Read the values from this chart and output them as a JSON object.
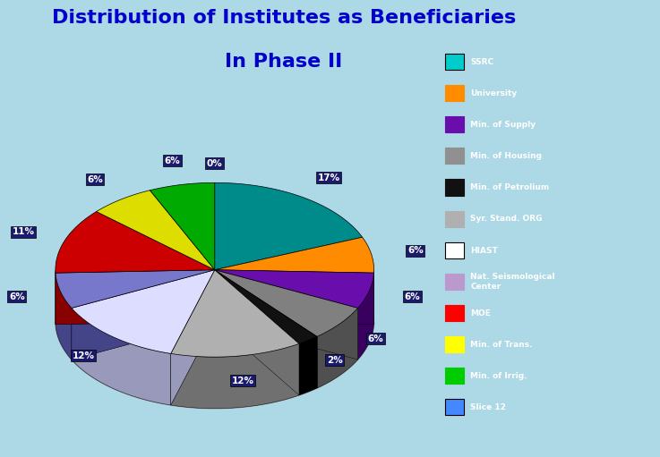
{
  "title_line1": "Distribution of Institutes as Beneficiaries",
  "title_line2": "In Phase II",
  "title_color": "#0000CC",
  "background_color": "#ADD8E6",
  "legend_bg": "#4477CC",
  "chart_box_color": "#E8E8F0",
  "labels": [
    "SSRC",
    "University",
    "Min. of Supply",
    "Min. of Housing",
    "Min. of Petrolium",
    "Syr. Stand. ORG",
    "HIAST",
    "Nat. Seismological\nCenter",
    "MOE",
    "Min. of Trans.",
    "Min. of Irrig.",
    "Slice 12"
  ],
  "values": [
    17,
    6,
    6,
    6,
    2,
    12,
    12,
    6,
    11,
    6,
    6,
    0
  ],
  "colors": [
    "#008B8B",
    "#FF8C00",
    "#6A0DAD",
    "#808080",
    "#111111",
    "#B0B0B0",
    "#DDDDFF",
    "#7777CC",
    "#CC0000",
    "#DDDD00",
    "#00AA00",
    "#3366CC"
  ],
  "side_colors": [
    "#005555",
    "#AA5500",
    "#3A0060",
    "#505050",
    "#000000",
    "#707070",
    "#9999BB",
    "#444488",
    "#880000",
    "#888800",
    "#006600",
    "#224488"
  ],
  "pct_labels": [
    "17%",
    "6%",
    "6%",
    "6%",
    "2%",
    "12%",
    "12%",
    "6%",
    "11%",
    "6%",
    "6%",
    "0%"
  ],
  "legend_colors": [
    "#00CCCC",
    "#FF8C00",
    "#6A0DAD",
    "#909090",
    "#111111",
    "#B0B0B0",
    "#FFFFFF",
    "#BB99CC",
    "#FF0000",
    "#FFFF00",
    "#00CC00",
    "#4488FF"
  ],
  "legend_outline": [
    true,
    false,
    false,
    false,
    false,
    false,
    true,
    false,
    false,
    false,
    false,
    true
  ]
}
